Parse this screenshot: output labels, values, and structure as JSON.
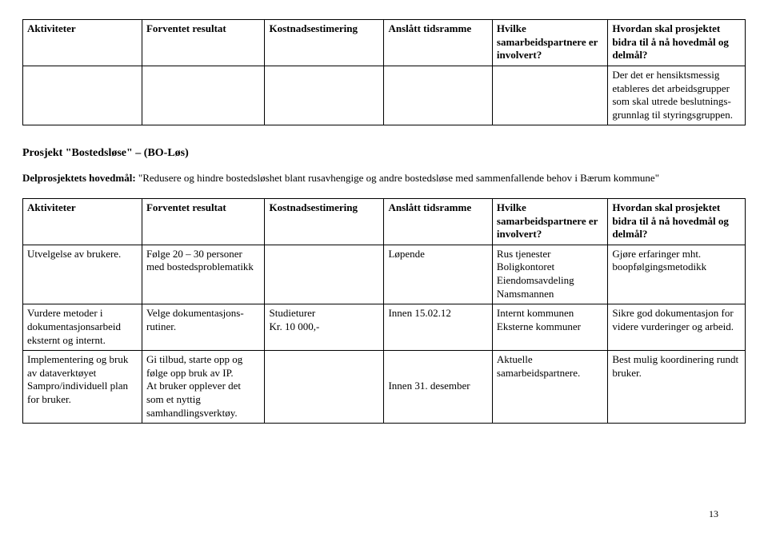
{
  "table1": {
    "headers": {
      "h1": "Aktiviteter",
      "h2": "Forventet resultat",
      "h3": "Kostnadsestimering",
      "h4": "Anslått tidsramme",
      "h5": "Hvilke samarbeidspartnere er involvert?",
      "h6": "Hvordan skal prosjektet bidra til å nå hovedmål og delmål?"
    },
    "row1": {
      "c6": "Der det er hensiktsmessig etableres det arbeidsgrupper som skal utrede beslutnings-grunnlag til styringsgruppen."
    }
  },
  "section": {
    "heading": "Prosjekt \"Bostedsløse\" – (BO-Løs)",
    "intro_lead": "Delprosjektets hovedmål:",
    "intro_rest": " \"Redusere og hindre bostedsløshet blant rusavhengige og andre bostedsløse med sammenfallende behov i Bærum kommune\""
  },
  "table2": {
    "headers": {
      "h1": "Aktiviteter",
      "h2": "Forventet resultat",
      "h3": "Kostnadsestimering",
      "h4": "Anslått tidsramme",
      "h5": "Hvilke samarbeidspartnere er involvert?",
      "h6": "Hvordan skal prosjektet bidra til å nå hovedmål og delmål?"
    },
    "rows": {
      "r1": {
        "c1": "Utvelgelse av brukere.",
        "c2": "Følge 20 – 30 personer med bostedsproblematikk",
        "c3": "",
        "c4": "Løpende",
        "c5": "Rus tjenester\nBoligkontoret\nEiendomsavdeling\nNamsmannen",
        "c6": "Gjøre erfaringer mht. boopfølgingsmetodikk"
      },
      "r2": {
        "c1": "Vurdere metoder i dokumentasjonsarbeid eksternt og internt.",
        "c2": "Velge dokumentasjons-rutiner.",
        "c3": "Studieturer\nKr. 10 000,-",
        "c4": "Innen 15.02.12",
        "c5": "Internt kommunen\nEksterne kommuner",
        "c6": "Sikre god dokumentasjon for videre vurderinger og arbeid."
      },
      "r3": {
        "c1": "Implementering og bruk av dataverktøyet Sampro/individuell plan for bruker.",
        "c2": "Gi tilbud, starte opp og følge opp bruk av IP.\nAt bruker opplever det som et nyttig samhandlingsverktøy.",
        "c3": "",
        "c4": "Innen 31. desember",
        "c5": "Aktuelle samarbeidspartnere.",
        "c6": "Best mulig koordinering rundt bruker."
      }
    }
  },
  "page_number": "13"
}
